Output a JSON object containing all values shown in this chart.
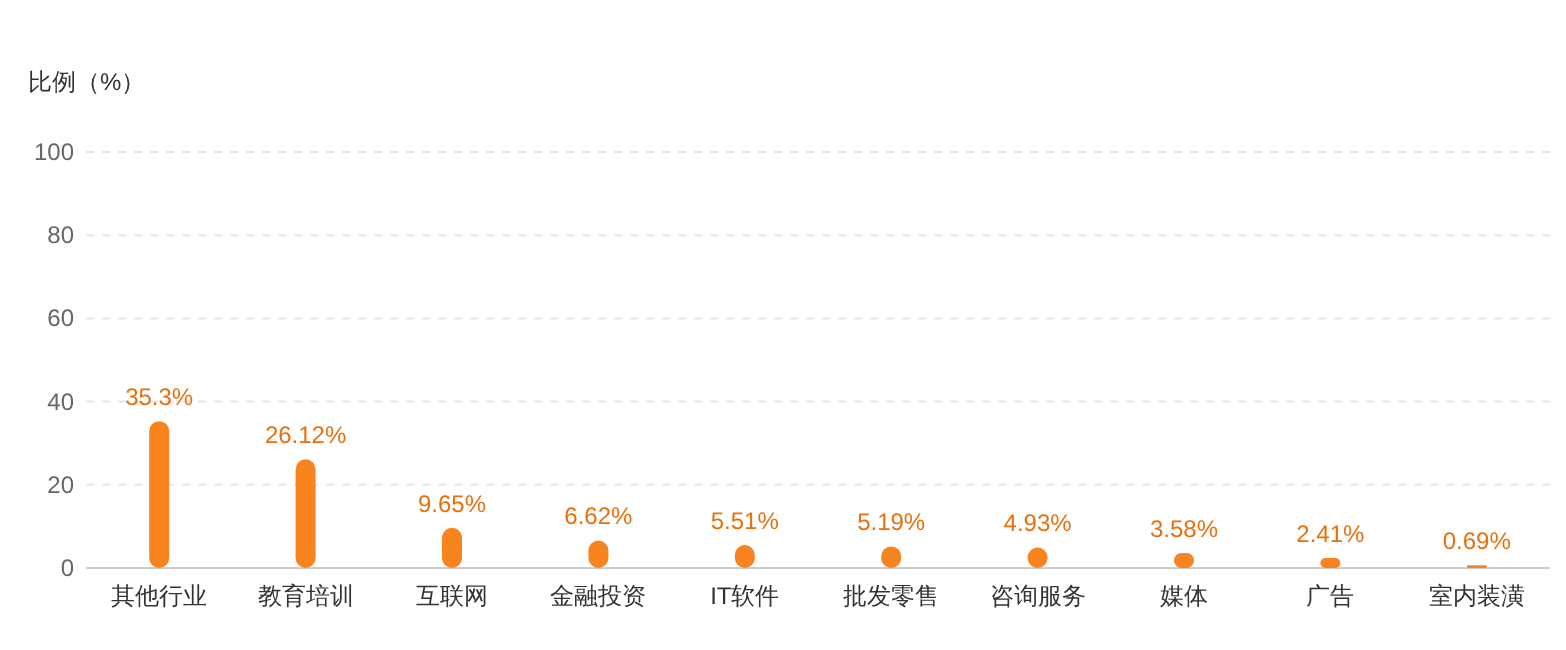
{
  "chart_data": {
    "type": "bar",
    "ylabel": "比例（%）",
    "categories": [
      "其他行业",
      "教育培训",
      "互联网",
      "金融投资",
      "IT软件",
      "批发零售",
      "咨询服务",
      "媒体",
      "广告",
      "室内装潢"
    ],
    "values": [
      35.3,
      26.12,
      9.65,
      6.62,
      5.51,
      5.19,
      4.93,
      3.58,
      2.41,
      0.69
    ],
    "value_labels": [
      "35.3%",
      "26.12%",
      "9.65%",
      "6.62%",
      "5.51%",
      "5.19%",
      "4.93%",
      "3.58%",
      "2.41%",
      "0.69%"
    ],
    "color": "#f7841e",
    "ylim": [
      0,
      100
    ],
    "yticks": [
      0,
      20,
      40,
      60,
      80,
      100
    ],
    "grid": "y"
  }
}
